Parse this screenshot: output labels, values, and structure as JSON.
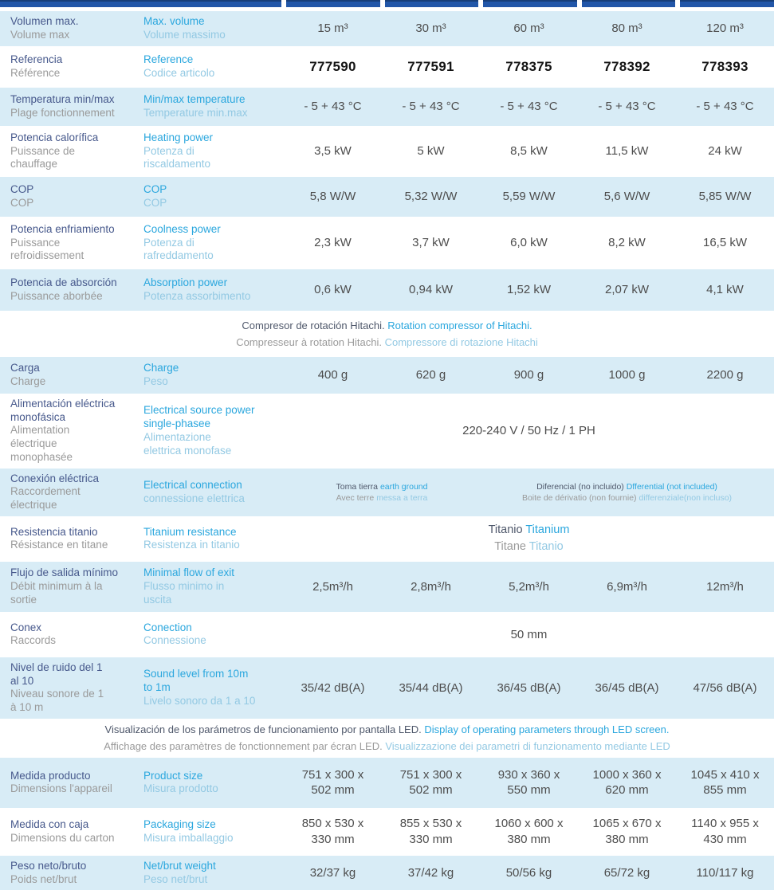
{
  "colors": {
    "header_bar": "#2156a8",
    "header_bar_edge": "#173e78",
    "band_blue": "#d8ecf6",
    "label_primary": "#47598c",
    "label_secondary": "#9a9a9a",
    "label_english": "#2ba7de",
    "label_italian": "#93c9e3",
    "value_text": "#4d4d4d",
    "reference_text": "#141414",
    "note_dark": "#4f586b"
  },
  "header_bar": {
    "data_columns": 5
  },
  "rows": [
    {
      "key": "volume-max",
      "type": "spec",
      "bg": "blue",
      "es": "Volumen max.",
      "fr": "Volume max",
      "en": "Max. volume",
      "it": "Volume massimo",
      "values": [
        "15 m³",
        "30 m³",
        "60 m³",
        "80 m³",
        "120 m³"
      ]
    },
    {
      "key": "reference",
      "type": "spec",
      "bg": "white",
      "es": "Referencia",
      "fr": "Référence",
      "en": "Reference",
      "it": "Codice articolo",
      "values": [
        {
          "t": "777590",
          "cls": "ref"
        },
        {
          "t": "777591",
          "cls": "ref"
        },
        {
          "t": "778375",
          "cls": "ref"
        },
        {
          "t": "778392",
          "cls": "ref"
        },
        {
          "t": "778393",
          "cls": "ref"
        }
      ]
    },
    {
      "key": "temperature-range",
      "type": "spec",
      "bg": "blue",
      "es": "Temperatura min/max",
      "fr": "Plage fonctionnement",
      "en": "Min/max temperature",
      "it": "Temperature min.max",
      "values": [
        "- 5 + 43 °C",
        "- 5 + 43 °C",
        "- 5 + 43 °C",
        "- 5 + 43 °C",
        "- 5 + 43 °C"
      ]
    },
    {
      "key": "heating-power",
      "type": "spec",
      "bg": "white",
      "es": "Potencia calorífica",
      "fr": "Puissance de\nchauffage",
      "en": "Heating power",
      "it": "Potenza di\nriscaldamento",
      "values": [
        "3,5 kW",
        "5 kW",
        "8,5 kW",
        "11,5 kW",
        "24 kW"
      ]
    },
    {
      "key": "cop",
      "type": "spec",
      "bg": "blue",
      "es": "COP",
      "fr": "COP",
      "en": "COP",
      "it": "COP",
      "values": [
        "5,8 W/W",
        "5,32 W/W",
        "5,59 W/W",
        "5,6 W/W",
        "5,85 W/W"
      ]
    },
    {
      "key": "cooling-power",
      "type": "spec",
      "bg": "white",
      "es": "Potencia enfriamiento",
      "fr": "Puissance\nrefroidissement",
      "en": "Coolness power",
      "it": "Potenza di\nrafreddamento",
      "values": [
        "2,3 kW",
        "3,7 kW",
        "6,0 kW",
        "8,2 kW",
        "16,5 kW"
      ]
    },
    {
      "key": "absorption-power",
      "type": "spec",
      "bg": "blue",
      "es": "Potencia de absorción",
      "fr": "Puissance aborbée",
      "en": "Absorption power",
      "it": "Potenza assorbimento",
      "values": [
        "0,6 kW",
        "0,94 kW",
        "1,52 kW",
        "2,07 kW",
        "4,1 kW"
      ]
    },
    {
      "key": "compressor-note",
      "type": "note",
      "bg": "white",
      "lines": [
        [
          {
            "t": "Compresor de rotación Hitachi. ",
            "c": "nd"
          },
          {
            "t": "Rotation compressor of Hitachi.",
            "c": "en"
          }
        ],
        [
          {
            "t": "Compresseur à rotation Hitachi. ",
            "c": "fr"
          },
          {
            "t": "Compressore di rotazione Hitachi",
            "c": "it"
          }
        ]
      ]
    },
    {
      "key": "charge",
      "type": "spec",
      "bg": "blue",
      "es": "Carga",
      "fr": "Charge",
      "en": "Charge",
      "it": "Peso",
      "values": [
        "400 g",
        "620 g",
        "900 g",
        "1000 g",
        "2200 g"
      ]
    },
    {
      "key": "power-supply",
      "type": "spec",
      "bg": "white",
      "es": "Alimentación eléctrica\nmonofásica",
      "fr": "Alimentation\nélectrique\nmonophasée",
      "en": "Electrical source power\nsingle-phasee",
      "it": "Alimentazione\nelettrica monofase",
      "values": [
        {
          "t": "220-240 V / 50 Hz / 1 PH",
          "span": 5
        }
      ]
    },
    {
      "key": "electrical-connection",
      "type": "spec",
      "bg": "blue",
      "es": "Conexión eléctrica",
      "fr": "Raccordement\nélectrique",
      "en": "Electrical connection",
      "it": "connessione elettrica",
      "values": [
        {
          "span": 2,
          "small": true,
          "rich": [
            [
              {
                "t": "Toma tierra ",
                "c": "nd"
              },
              {
                "t": "earth ground",
                "c": "en"
              }
            ],
            [
              {
                "t": "Avec terre ",
                "c": "fr"
              },
              {
                "t": "messa a terra",
                "c": "it"
              }
            ]
          ]
        },
        {
          "span": 3,
          "small": true,
          "rich": [
            [
              {
                "t": "Diferencial (no incluido) ",
                "c": "nd"
              },
              {
                "t": "Dfferential (not included)",
                "c": "en"
              }
            ],
            [
              {
                "t": "Boite de dérivatio (non fournie)  ",
                "c": "fr"
              },
              {
                "t": "differenziale(non incluso)",
                "c": "it"
              }
            ]
          ]
        }
      ]
    },
    {
      "key": "titanium-resistance",
      "type": "spec",
      "bg": "white",
      "es": "Resistencia titanio",
      "fr": "Résistance en titane",
      "en": "Titanium resistance",
      "it": "Resistenza in titanio",
      "values": [
        {
          "span": 5,
          "med": true,
          "rich": [
            [
              {
                "t": "Titanio ",
                "c": "nd"
              },
              {
                "t": "Titanium",
                "c": "en"
              }
            ],
            [
              {
                "t": "Titane ",
                "c": "fr"
              },
              {
                "t": "Titanio",
                "c": "it"
              }
            ]
          ]
        }
      ]
    },
    {
      "key": "minimal-flow",
      "type": "spec",
      "bg": "blue",
      "es": "Flujo de salida mínimo",
      "fr": "Débit minimum à la\nsortie",
      "en": "Minimal flow of exit",
      "it": "Flusso minimo in\nuscita",
      "values": [
        "2,5m³/h",
        "2,8m³/h",
        "5,2m³/h",
        "6,9m³/h",
        "12m³/h"
      ]
    },
    {
      "key": "connection",
      "type": "spec",
      "bg": "white",
      "es": "Conex",
      "fr": "Raccords",
      "en": "Conection\n",
      "it": "Connessione",
      "values": [
        {
          "t": "50 mm",
          "span": 5
        }
      ]
    },
    {
      "key": "sound-level",
      "type": "spec",
      "bg": "blue",
      "es": "Nivel de ruido del 1\nal 10",
      "fr": "Niveau sonore de 1\nà 10 m",
      "en": "Sound level from 10m\nto 1m",
      "it": "Livelo sonoro da 1 a 10",
      "values": [
        "35/42 dB(A)",
        "35/44 dB(A)",
        "36/45 dB(A)",
        "36/45 dB(A)",
        "47/56 dB(A)"
      ]
    },
    {
      "key": "led-note",
      "type": "note",
      "bg": "white",
      "lines": [
        [
          {
            "t": "Visualización de los parámetros de funcionamiento por pantalla LED. ",
            "c": "nd"
          },
          {
            "t": "Display of operating parameters through LED screen.",
            "c": "en"
          }
        ],
        [
          {
            "t": "Affichage des paramètres de fonctionnement par écran LED. ",
            "c": "fr"
          },
          {
            "t": "Visualizzazione dei parametri di funzionamento mediante LED",
            "c": "it"
          }
        ]
      ]
    },
    {
      "key": "product-size",
      "type": "spec",
      "bg": "blue",
      "es": "Medida producto",
      "fr": "Dimensions l'appareil",
      "en": "Product size",
      "it": "Misura prodotto",
      "values": [
        "751 x 300 x\n502 mm",
        "751 x 300 x\n502 mm",
        "930 x 360 x\n550 mm",
        "1000 x 360 x\n620 mm",
        "1045 x 410 x\n855 mm"
      ]
    },
    {
      "key": "packaging-size",
      "type": "spec",
      "bg": "white",
      "es": "Medida con caja",
      "fr": "Dimensions du carton",
      "en": "Packaging size",
      "it": "Misura imballaggio",
      "values": [
        "850 x 530 x\n330 mm",
        "855 x 530 x\n330 mm",
        "1060 x 600 x\n380 mm",
        "1065 x 670 x\n380 mm",
        "1140 x 955 x\n430 mm"
      ]
    },
    {
      "key": "net-weight",
      "type": "spec",
      "bg": "blue",
      "es": "Peso neto/bruto",
      "fr": "Poids net/brut",
      "en": "Net/brut weight",
      "it": "Peso net/brut",
      "values": [
        "32/37 kg",
        "37/42 kg",
        "50/56 kg",
        "65/72 kg",
        "110/117 kg"
      ]
    }
  ]
}
